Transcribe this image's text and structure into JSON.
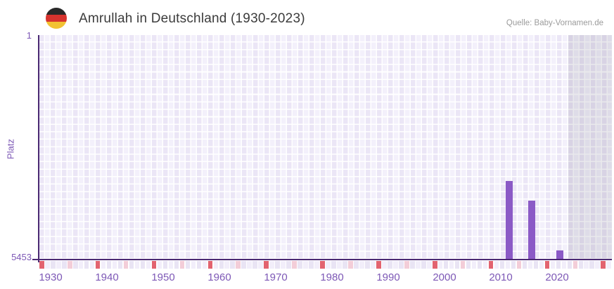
{
  "header": {
    "title": "Amrullah in Deutschland (1930-2023)",
    "flag_icon": "germany-flag-icon",
    "source": "Quelle: Baby-Vornamen.de"
  },
  "chart_data": {
    "type": "bar",
    "title": "Amrullah in Deutschland (1930-2023)",
    "xlabel": "",
    "ylabel": "Platz",
    "legend": "none",
    "grid": true,
    "y_axis": {
      "tick_top": "1",
      "tick_bottom": "5453",
      "min": 1,
      "max": 5453,
      "inverted": true
    },
    "x_axis": {
      "start_year": 1930,
      "end_year": 2031,
      "data_end_year": 2023,
      "tick_labels": [
        "1930",
        "1940",
        "1950",
        "1960",
        "1970",
        "1980",
        "1990",
        "2000",
        "2010",
        "2020"
      ]
    },
    "series": [
      {
        "name": "Platz",
        "points": [
          {
            "year": 2013,
            "rank": 3540
          },
          {
            "year": 2017,
            "rank": 4020
          },
          {
            "year": 2022,
            "rank": 5230
          }
        ]
      }
    ],
    "annotations": {
      "future_band_start_year": 2024
    },
    "colors": {
      "bar": "#8b5ac6",
      "axis": "#4b2a73",
      "tick_label": "#7d58b6",
      "decade_cell": "#e2636f",
      "half_decade_cell": "#f3cdd8",
      "strip_cell_a": "#f2eefa",
      "strip_cell_b": "#e9e4f4",
      "title_text": "#3b3b3b",
      "source_text": "#9b9b9b"
    }
  }
}
